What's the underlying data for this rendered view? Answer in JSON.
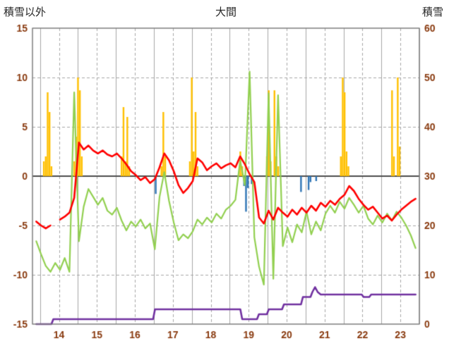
{
  "header": {
    "left_axis_title": "積雪以外",
    "title": "大間",
    "right_axis_title": "積雪"
  },
  "colors": {
    "background": "#FFFFFF",
    "grid": "#A6A6A6",
    "border": "#7F7F7F",
    "zero_line": "#4D4D4D",
    "axis_text": "#8A3B10",
    "title_text": "#262626"
  },
  "chart_data": {
    "type": "line",
    "title": "大間",
    "x_axis": {
      "min": 13.8,
      "max": 24.0,
      "unit": "day",
      "day_labels": [
        "14",
        "15",
        "16",
        "17",
        "18",
        "19",
        "20",
        "21",
        "22",
        "23"
      ],
      "label_position_offset": 0.5,
      "solid_gridlines_at": "integer days",
      "dashed_gridlines_at": "half days"
    },
    "left_axis": {
      "title": "積雪以外",
      "min": -15,
      "max": 15,
      "ticks": [
        15,
        10,
        5,
        0,
        -5,
        -10,
        -15
      ]
    },
    "right_axis": {
      "title": "積雪",
      "min": 0,
      "max": 60,
      "ticks": [
        60,
        50,
        40,
        30,
        20,
        10,
        0
      ]
    },
    "grid": true,
    "legend": "none",
    "series": [
      {
        "name": "orange-bars",
        "type": "bar",
        "axis": "left",
        "color": "#FFC000",
        "bar_width": 2.4,
        "points": [
          [
            14.1,
            1.5
          ],
          [
            14.15,
            2.0
          ],
          [
            14.2,
            8.5
          ],
          [
            14.25,
            6.5
          ],
          [
            14.3,
            1.0
          ],
          [
            14.9,
            1.5
          ],
          [
            14.95,
            4.0
          ],
          [
            15.0,
            10.0
          ],
          [
            15.05,
            8.7
          ],
          [
            15.1,
            2.0
          ],
          [
            16.15,
            2.0
          ],
          [
            16.2,
            7.0
          ],
          [
            16.25,
            1.5
          ],
          [
            16.3,
            6.0
          ],
          [
            16.35,
            1.0
          ],
          [
            17.2,
            1.0
          ],
          [
            17.25,
            6.5
          ],
          [
            17.3,
            2.0
          ],
          [
            17.95,
            1.5
          ],
          [
            18.0,
            10.0
          ],
          [
            18.05,
            2.5
          ],
          [
            18.1,
            6.5
          ],
          [
            18.15,
            1.0
          ],
          [
            19.28,
            2.5
          ],
          [
            19.33,
            1.0
          ],
          [
            19.98,
            2.0
          ],
          [
            20.03,
            8.7
          ],
          [
            20.08,
            1.5
          ],
          [
            20.18,
            8.7
          ],
          [
            20.23,
            2.0
          ],
          [
            20.28,
            1.0
          ],
          [
            21.93,
            2.0
          ],
          [
            21.98,
            10.0
          ],
          [
            22.03,
            8.5
          ],
          [
            22.08,
            2.5
          ],
          [
            22.13,
            1.0
          ],
          [
            23.28,
            8.7
          ],
          [
            23.33,
            2.0
          ],
          [
            23.43,
            10.0
          ],
          [
            23.48,
            3.0
          ]
        ]
      },
      {
        "name": "blue-bars",
        "type": "bar",
        "axis": "left",
        "color": "#2E75B6",
        "bar_width": 2.4,
        "points": [
          [
            17.05,
            -1.8
          ],
          [
            19.38,
            -1.0
          ],
          [
            19.43,
            -3.6
          ],
          [
            19.48,
            -1.2
          ],
          [
            19.58,
            -0.8
          ],
          [
            20.88,
            -1.6
          ],
          [
            21.08,
            -1.4
          ],
          [
            21.13,
            -0.6
          ],
          [
            21.28,
            -0.5
          ]
        ]
      },
      {
        "name": "green-line",
        "type": "line",
        "axis": "left",
        "color": "#92D050",
        "width": 2.2,
        "t0": 13.9,
        "dt": 0.125,
        "y": [
          -6.6,
          -7.9,
          -9.1,
          -9.7,
          -8.8,
          -9.5,
          -8.3,
          -9.7,
          8.5,
          -6.6,
          -3.1,
          -1.3,
          -2.1,
          -2.9,
          -2.2,
          -3.5,
          -3.9,
          -3.2,
          -4.5,
          -5.5,
          -4.6,
          -5.1,
          -4.4,
          -5.3,
          -4.8,
          -7.4,
          -2.1,
          0.4,
          -2.5,
          -4.7,
          -6.5,
          -5.9,
          -6.3,
          -5.6,
          -4.4,
          -4.9,
          -4.2,
          -4.7,
          -3.8,
          -4.3,
          -3.4,
          -3.0,
          -2.4,
          1.6,
          -0.9,
          10.6,
          -6.2,
          -9.2,
          -11.0,
          8.4,
          -10.4,
          8.2,
          -7.1,
          -5.2,
          -6.7,
          -4.9,
          -5.7,
          -3.6,
          -5.9,
          -4.6,
          -5.5,
          -3.8,
          -3.0,
          -3.7,
          -2.6,
          -3.3,
          -2.2,
          -2.9,
          -3.7,
          -3.0,
          -4.3,
          -4.9,
          -4.0,
          -4.7,
          -3.8,
          -4.5,
          -3.6,
          -4.2,
          -5.0,
          -6.0,
          -7.3
        ]
      },
      {
        "name": "red-line",
        "type": "line",
        "axis": "left",
        "color": "#FF0000",
        "width": 2.6,
        "t0": 13.9,
        "dt": 0.125,
        "y": [
          -4.6,
          -5.0,
          -5.3,
          -5.0,
          null,
          -4.4,
          -4.1,
          -3.7,
          -2.2,
          3.4,
          2.7,
          3.1,
          2.6,
          2.3,
          2.6,
          2.2,
          2.0,
          2.3,
          1.8,
          1.2,
          0.5,
          0.1,
          -0.4,
          -0.1,
          -0.7,
          -0.3,
          0.9,
          2.3,
          1.6,
          0.5,
          -0.9,
          -1.7,
          -1.2,
          -0.5,
          1.8,
          1.4,
          0.6,
          1.0,
          1.3,
          0.8,
          1.1,
          1.3,
          0.9,
          2.0,
          1.2,
          0.2,
          -0.6,
          -4.2,
          -4.8,
          -3.5,
          -4.4,
          -3.2,
          -3.7,
          -4.1,
          -3.4,
          -3.9,
          -3.2,
          -3.7,
          -3.0,
          -3.5,
          -2.7,
          -3.1,
          -2.5,
          -2.9,
          -2.3,
          -1.9,
          -1.0,
          -1.5,
          -2.3,
          -2.9,
          -3.4,
          -3.1,
          -3.7,
          -4.3,
          -4.0,
          -4.5,
          -3.9,
          -3.4,
          -3.0,
          -2.6,
          -2.3
        ]
      },
      {
        "name": "purple-line-snow-depth",
        "type": "line",
        "axis": "right",
        "color": "#7030A0",
        "width": 2.6,
        "points": [
          [
            13.9,
            0
          ],
          [
            14.3,
            0
          ],
          [
            14.35,
            1
          ],
          [
            16.98,
            1
          ],
          [
            17.03,
            3
          ],
          [
            19.28,
            3
          ],
          [
            19.33,
            1
          ],
          [
            19.72,
            1
          ],
          [
            19.77,
            2
          ],
          [
            19.98,
            2
          ],
          [
            20.03,
            3
          ],
          [
            20.38,
            3
          ],
          [
            20.43,
            4
          ],
          [
            20.88,
            4
          ],
          [
            20.93,
            5.5
          ],
          [
            21.13,
            5.5
          ],
          [
            21.18,
            6.5
          ],
          [
            21.25,
            7.5
          ],
          [
            21.32,
            6.5
          ],
          [
            21.4,
            6
          ],
          [
            22.48,
            6
          ],
          [
            22.53,
            5.5
          ],
          [
            22.68,
            5.5
          ],
          [
            22.73,
            6
          ],
          [
            23.9,
            6
          ]
        ]
      }
    ]
  }
}
